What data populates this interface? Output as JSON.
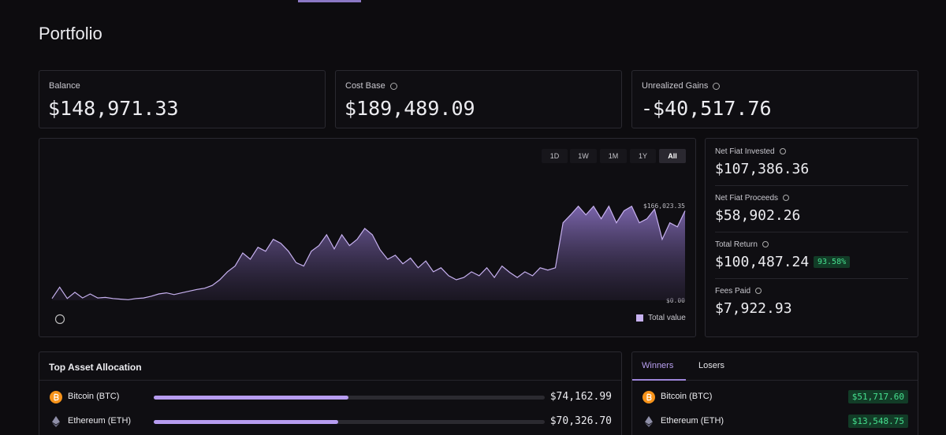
{
  "header": {
    "title": "Portfolio"
  },
  "summary": [
    {
      "label": "Balance",
      "value": 148971.33,
      "value_label": "$148,971.33"
    },
    {
      "label": "Cost Base",
      "value_label": "$189,489.09"
    },
    {
      "label": "Unrealized Gains",
      "value_label": "-$40,517.76"
    }
  ],
  "chart_data": {
    "type": "area",
    "ranges": [
      "1D",
      "1W",
      "1M",
      "1Y",
      "All"
    ],
    "selected_range": 4,
    "series": [
      {
        "name": "Total value",
        "color": "#c7b1f0",
        "values": [
          3000,
          23000,
          3000,
          14000,
          4000,
          11000,
          4000,
          5000,
          3000,
          2000,
          1000,
          3000,
          4000,
          7000,
          11000,
          13000,
          10000,
          13000,
          16000,
          19000,
          21000,
          26000,
          36000,
          50000,
          60000,
          83000,
          72000,
          93000,
          86000,
          107000,
          100000,
          86000,
          66000,
          60000,
          86000,
          96000,
          115000,
          90000,
          115000,
          96000,
          107000,
          126000,
          115000,
          89000,
          72000,
          79000,
          64000,
          74000,
          57000,
          69000,
          50000,
          57000,
          43000,
          36000,
          40000,
          50000,
          43000,
          57000,
          40000,
          60000,
          49000,
          40000,
          50000,
          43000,
          57000,
          53000,
          57000,
          136000,
          150000,
          165000,
          150000,
          165000,
          143000,
          165000,
          136000,
          157000,
          165000,
          136000,
          143000,
          160000,
          107000,
          136000,
          129000,
          157000
        ]
      }
    ],
    "ylim": [
      0,
      166023.35
    ],
    "yticks": [
      {
        "value": 166023.35,
        "label": "$166,023.35"
      },
      {
        "value": 0,
        "label": "$0.00"
      }
    ]
  },
  "stats": [
    {
      "label": "Net Fiat Invested",
      "value": "$107,386.36"
    },
    {
      "label": "Net Fiat Proceeds",
      "value": "$58,902.26"
    },
    {
      "label": "Total Return",
      "value": "$100,487.24",
      "badge": "93.58%"
    },
    {
      "label": "Fees Paid",
      "value": "$7,922.93"
    }
  ],
  "allocation": {
    "title": "Top Asset Allocation",
    "color": "#b79cf0",
    "rows": [
      {
        "name": "Bitcoin (BTC)",
        "value": 74162.99,
        "value_label": "$74,162.99"
      },
      {
        "name": "Ethereum (ETH)",
        "value": 70326.7,
        "value_label": "$70,326.70"
      }
    ]
  },
  "movers": {
    "tabs": [
      "Winners",
      "Losers"
    ],
    "selected_tab": 0,
    "rows": [
      {
        "name": "Bitcoin (BTC)",
        "change": "$51,717.60"
      },
      {
        "name": "Ethereum (ETH)",
        "change": "$13,548.75"
      }
    ]
  }
}
